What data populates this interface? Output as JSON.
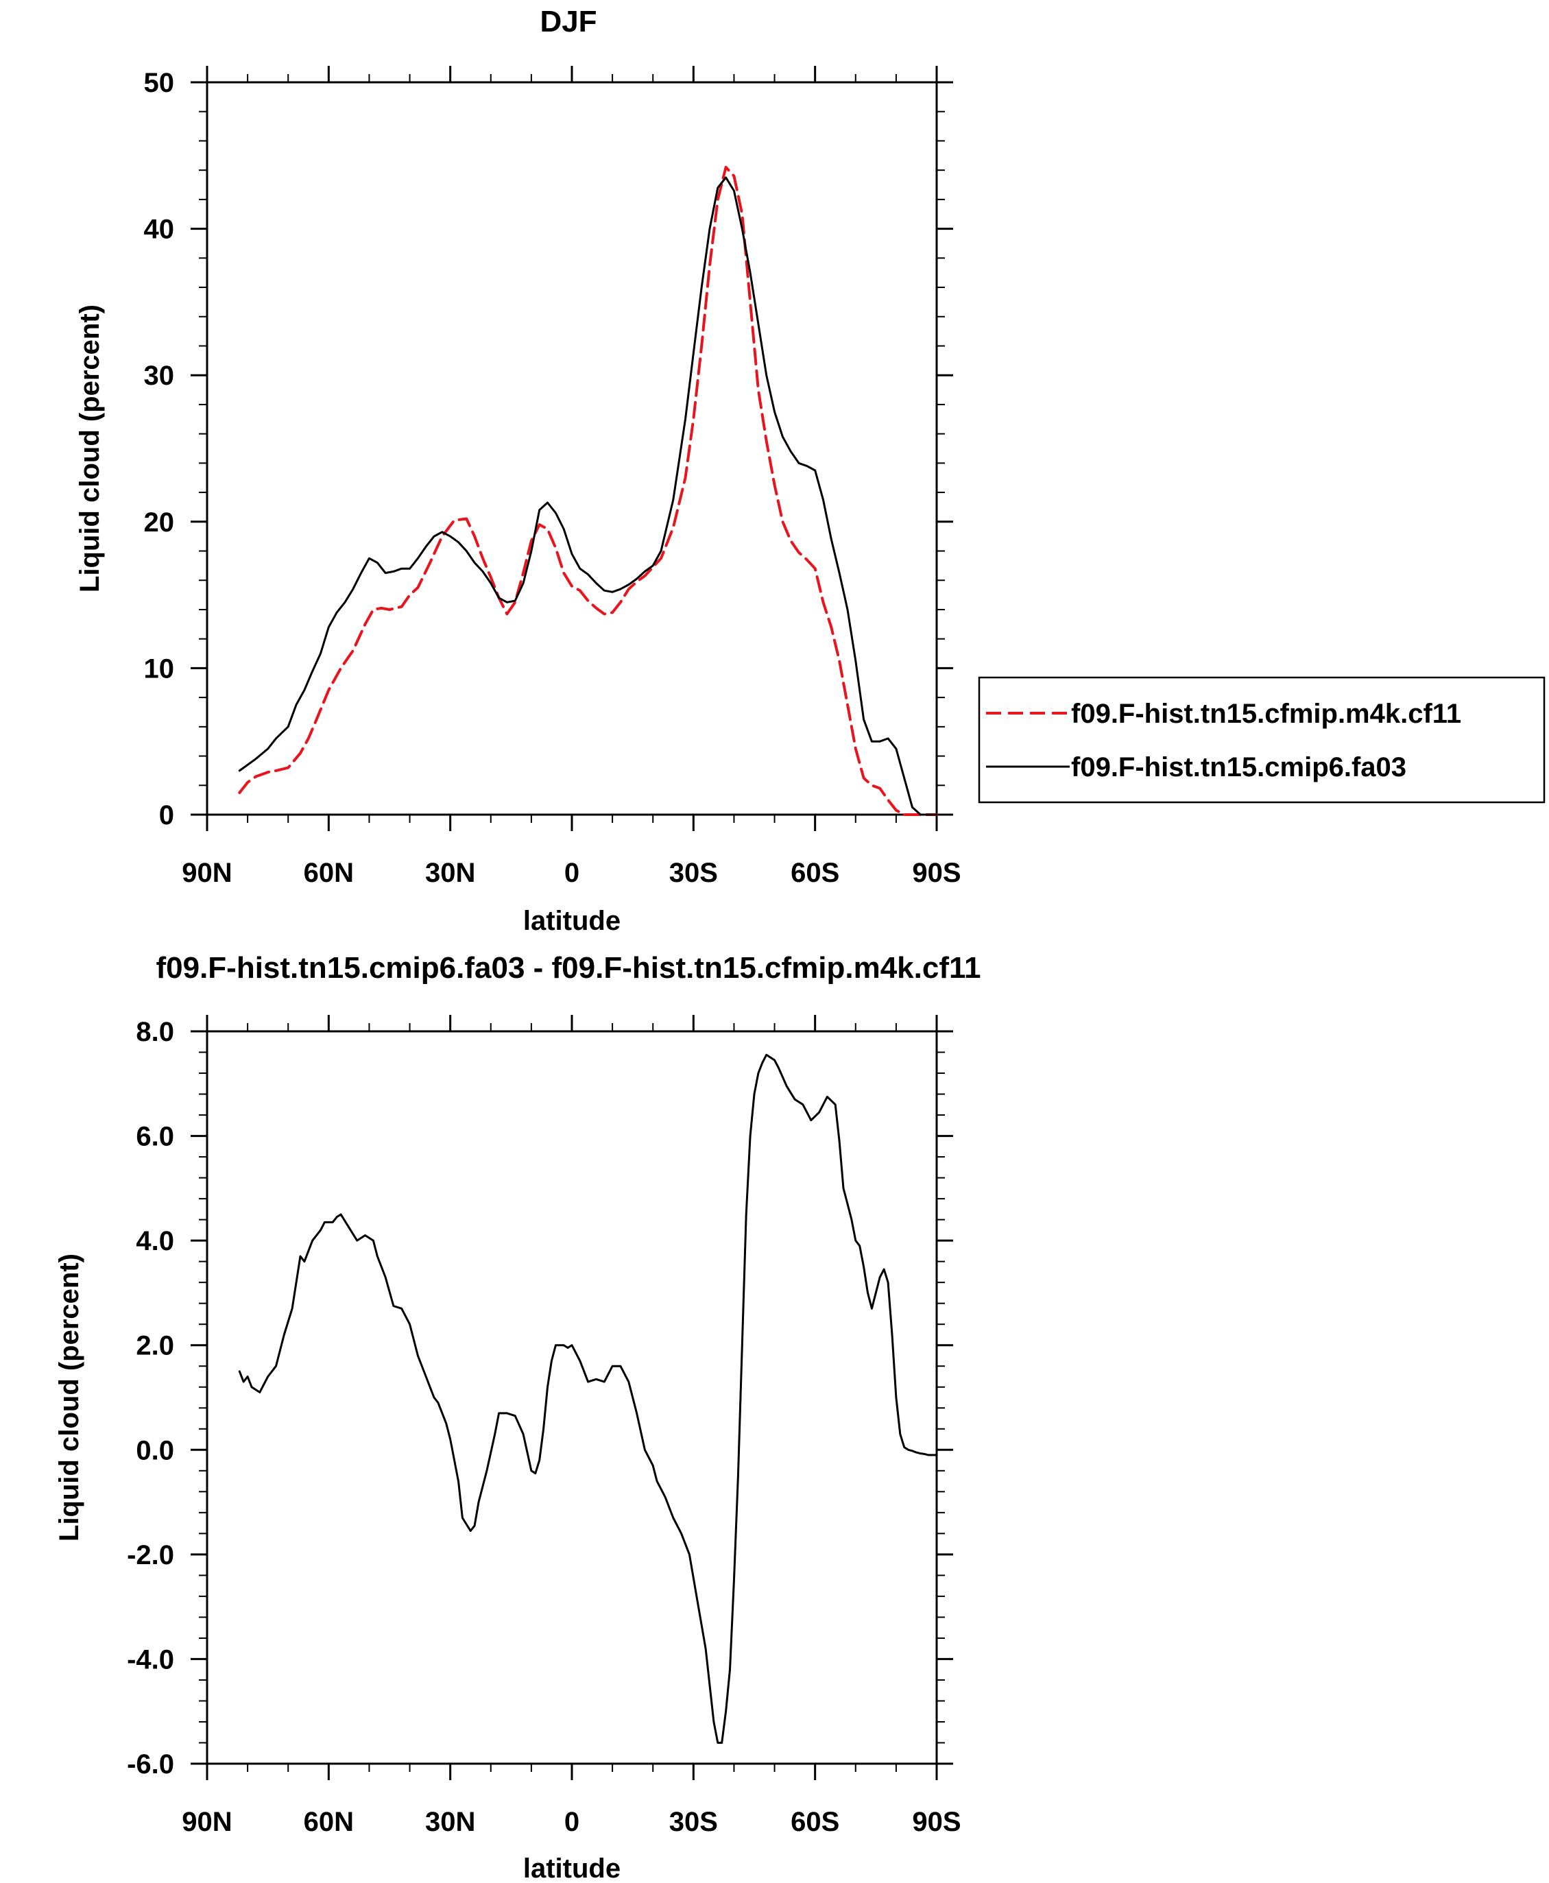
{
  "figure": {
    "top_title": "DJF",
    "bottom_title": "f09.F-hist.tn15.cmip6.fa03 - f09.F-hist.tn15.cfmip.m4k.cf11"
  },
  "chart_data": [
    {
      "type": "line",
      "title": "DJF",
      "xlabel": "latitude",
      "ylabel": "Liquid cloud (percent)",
      "x_tick_labels": [
        "90N",
        "60N",
        "30N",
        "0",
        "30S",
        "60S",
        "90S"
      ],
      "x_tick_values": [
        90,
        60,
        30,
        0,
        -30,
        -60,
        -90
      ],
      "xlim": [
        90,
        -90
      ],
      "y_tick_labels": [
        "0",
        "10",
        "20",
        "30",
        "40",
        "50"
      ],
      "y_tick_values": [
        0,
        10,
        20,
        30,
        40,
        50
      ],
      "ylim": [
        0,
        50
      ],
      "legend": "right",
      "series": [
        {
          "name": "f09.F-hist.tn15.cfmip.m4k.cf11",
          "color": "#e8141e",
          "dash": "dashed",
          "x": [
            82,
            80,
            78,
            75,
            73,
            70,
            67,
            65,
            63,
            60,
            57,
            54,
            51,
            49,
            47,
            45,
            42,
            40,
            38,
            35,
            32,
            29,
            26,
            24,
            22,
            20,
            18,
            16,
            14,
            12,
            10,
            8,
            6,
            4,
            2,
            0,
            -2,
            -4,
            -6,
            -8,
            -10,
            -12,
            -14,
            -16,
            -18,
            -20,
            -22,
            -25,
            -28,
            -30,
            -32,
            -34,
            -36,
            -38,
            -40,
            -42,
            -44,
            -46,
            -48,
            -50,
            -52,
            -54,
            -56,
            -58,
            -60,
            -62,
            -64,
            -66,
            -68,
            -70,
            -72,
            -74,
            -76,
            -78,
            -80,
            -82,
            -84,
            -86,
            -88,
            -90
          ],
          "y": [
            1.5,
            2.2,
            2.6,
            2.9,
            3.0,
            3.2,
            4.2,
            5.2,
            6.5,
            8.5,
            10.0,
            11.2,
            13.0,
            14.0,
            14.1,
            14.0,
            14.2,
            15.0,
            15.5,
            17.2,
            19.0,
            20.1,
            20.2,
            19.0,
            17.5,
            16.2,
            14.8,
            13.7,
            14.5,
            16.5,
            18.7,
            19.8,
            19.5,
            18.2,
            16.5,
            15.6,
            15.3,
            14.6,
            14.1,
            13.7,
            13.8,
            14.5,
            15.4,
            15.9,
            16.3,
            16.9,
            17.5,
            19.6,
            23.0,
            27.0,
            32.0,
            37.5,
            42.0,
            44.2,
            43.6,
            41.0,
            35.0,
            29.0,
            25.5,
            22.5,
            20.0,
            18.7,
            17.9,
            17.4,
            16.8,
            14.5,
            12.8,
            10.5,
            7.5,
            4.5,
            2.5,
            2.0,
            1.8,
            1.0,
            0.3,
            0.0,
            0.0,
            0.0,
            0.0,
            0.0
          ]
        },
        {
          "name": "f09.F-hist.tn15.cmip6.fa03",
          "color": "#000000",
          "dash": "solid",
          "x": [
            82,
            80,
            78,
            75,
            73,
            70,
            68,
            66,
            64,
            62,
            60,
            58,
            56,
            54,
            52,
            50,
            48,
            46,
            44,
            42,
            40,
            38,
            36,
            34,
            32,
            30,
            28,
            26,
            24,
            22,
            20,
            18,
            16,
            14,
            12,
            10,
            8,
            6,
            4,
            2,
            0,
            -2,
            -4,
            -6,
            -8,
            -10,
            -12,
            -14,
            -16,
            -18,
            -20,
            -22,
            -25,
            -28,
            -30,
            -32,
            -34,
            -36,
            -38,
            -40,
            -42,
            -44,
            -46,
            -48,
            -50,
            -52,
            -54,
            -56,
            -58,
            -60,
            -62,
            -64,
            -66,
            -68,
            -70,
            -72,
            -74,
            -76,
            -78,
            -80,
            -82,
            -84,
            -86,
            -88,
            -90
          ],
          "y": [
            3.0,
            3.4,
            3.8,
            4.5,
            5.2,
            6.0,
            7.5,
            8.5,
            9.8,
            11.0,
            12.8,
            13.8,
            14.5,
            15.4,
            16.5,
            17.5,
            17.2,
            16.5,
            16.6,
            16.8,
            16.8,
            17.5,
            18.3,
            19.0,
            19.3,
            19.0,
            18.6,
            18.0,
            17.2,
            16.6,
            15.8,
            14.8,
            14.5,
            14.6,
            15.8,
            18.0,
            20.8,
            21.3,
            20.6,
            19.5,
            17.8,
            16.8,
            16.4,
            15.8,
            15.3,
            15.2,
            15.4,
            15.7,
            16.1,
            16.6,
            17.0,
            18.0,
            21.5,
            27.0,
            31.5,
            36.0,
            40.0,
            42.8,
            43.5,
            42.6,
            40.0,
            37.0,
            33.5,
            30.0,
            27.5,
            25.8,
            24.8,
            24.0,
            23.8,
            23.5,
            21.5,
            18.8,
            16.5,
            14.0,
            10.5,
            6.5,
            5.0,
            5.0,
            5.2,
            4.5,
            2.5,
            0.5,
            0.0,
            0.0,
            0.0
          ]
        }
      ]
    },
    {
      "type": "line",
      "title": "f09.F-hist.tn15.cmip6.fa03 - f09.F-hist.tn15.cfmip.m4k.cf11",
      "xlabel": "latitude",
      "ylabel": "Liquid cloud (percent)",
      "x_tick_labels": [
        "90N",
        "60N",
        "30N",
        "0",
        "30S",
        "60S",
        "90S"
      ],
      "x_tick_values": [
        90,
        60,
        30,
        0,
        -30,
        -60,
        -90
      ],
      "xlim": [
        90,
        -90
      ],
      "y_tick_labels": [
        "-6.0",
        "-4.0",
        "-2.0",
        "0.0",
        "2.0",
        "4.0",
        "6.0",
        "8.0"
      ],
      "y_tick_values": [
        -6,
        -4,
        -2,
        0,
        2,
        4,
        6,
        8
      ],
      "ylim": [
        -6,
        8
      ],
      "series": [
        {
          "name": "",
          "color": "#000000",
          "dash": "solid",
          "x": [
            82,
            81,
            80,
            79,
            77,
            75,
            73,
            71,
            69,
            67,
            66,
            64,
            62,
            61,
            59,
            58,
            57,
            55,
            53,
            51,
            49,
            48,
            46,
            44,
            42,
            40,
            38,
            36,
            34,
            33,
            31,
            30,
            28,
            27,
            25,
            24,
            23,
            21,
            19,
            18,
            16,
            14,
            12,
            10,
            9,
            8,
            7,
            6,
            5,
            4,
            3,
            2,
            1,
            0,
            -2,
            -4,
            -6,
            -8,
            -10,
            -12,
            -14,
            -16,
            -18,
            -20,
            -21,
            -23,
            -25,
            -27,
            -29,
            -31,
            -33,
            -34,
            -35,
            -36,
            -37,
            -38,
            -39,
            -40,
            -41,
            -42,
            -43,
            -44,
            -45,
            -46,
            -47,
            -48,
            -49,
            -50,
            -51,
            -53,
            -55,
            -57,
            -59,
            -61,
            -63,
            -65,
            -66,
            -67,
            -68,
            -69,
            -70,
            -71,
            -72,
            -73,
            -74,
            -76,
            -77,
            -78,
            -79,
            -80,
            -81,
            -82,
            -83,
            -84,
            -85,
            -86,
            -87,
            -88,
            -90
          ],
          "y": [
            1.5,
            1.3,
            1.4,
            1.2,
            1.1,
            1.4,
            1.6,
            2.2,
            2.7,
            3.7,
            3.6,
            4.0,
            4.2,
            4.35,
            4.35,
            4.45,
            4.5,
            4.25,
            4.0,
            4.1,
            4.0,
            3.7,
            3.3,
            2.75,
            2.7,
            2.4,
            1.8,
            1.4,
            1.0,
            0.9,
            0.5,
            0.2,
            -0.6,
            -1.3,
            -1.55,
            -1.45,
            -1.0,
            -0.4,
            0.3,
            0.7,
            0.7,
            0.65,
            0.3,
            -0.4,
            -0.45,
            -0.2,
            0.4,
            1.2,
            1.7,
            2.0,
            2.0,
            2.0,
            1.95,
            2.0,
            1.7,
            1.3,
            1.35,
            1.3,
            1.6,
            1.6,
            1.3,
            0.7,
            0.0,
            -0.3,
            -0.6,
            -0.9,
            -1.3,
            -1.6,
            -2.0,
            -2.9,
            -3.8,
            -4.5,
            -5.2,
            -5.6,
            -5.6,
            -5.0,
            -4.2,
            -2.5,
            -0.5,
            2.0,
            4.5,
            6.0,
            6.8,
            7.2,
            7.4,
            7.55,
            7.5,
            7.45,
            7.3,
            6.95,
            6.7,
            6.6,
            6.3,
            6.45,
            6.75,
            6.6,
            5.9,
            5.0,
            4.7,
            4.4,
            4.0,
            3.9,
            3.5,
            3.0,
            2.7,
            3.3,
            3.45,
            3.2,
            2.2,
            1.0,
            0.3,
            0.05,
            0.0,
            -0.02,
            -0.05,
            -0.07,
            -0.08,
            -0.1,
            -0.1
          ]
        }
      ]
    }
  ]
}
